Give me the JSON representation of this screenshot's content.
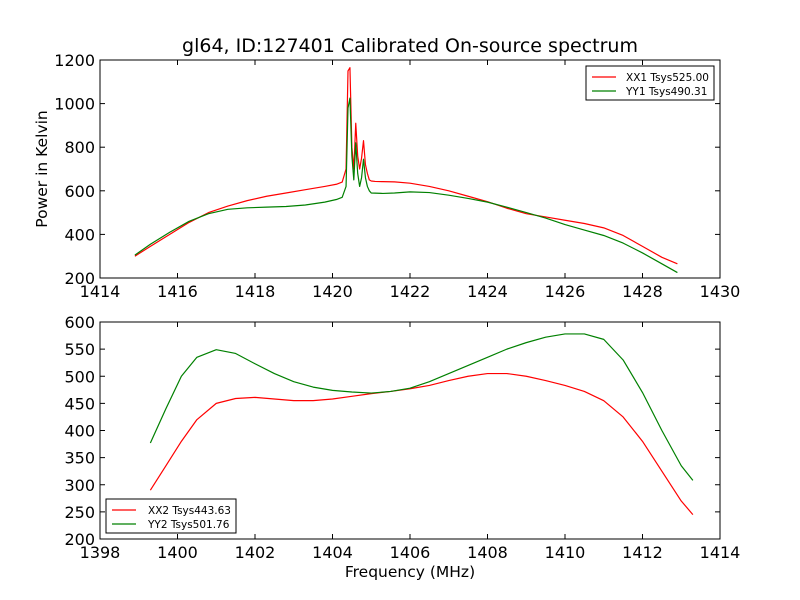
{
  "chart_data": [
    {
      "type": "line",
      "title": "gl64, ID:127401 Calibrated On-source spectrum",
      "xlabel": "",
      "ylabel": "Power in Kelvin",
      "xlim": [
        1414,
        1430
      ],
      "ylim": [
        200,
        1200
      ],
      "xticks": [
        1414,
        1416,
        1418,
        1420,
        1422,
        1424,
        1426,
        1428,
        1430
      ],
      "yticks": [
        200,
        400,
        600,
        800,
        1000,
        1200
      ],
      "grid": false,
      "legend": "top-right",
      "series": [
        {
          "name": "XX1 Tsys525.00",
          "color": "#ff0000",
          "x": [
            1414.9,
            1415.3,
            1415.8,
            1416.3,
            1416.8,
            1417.3,
            1417.8,
            1418.3,
            1418.8,
            1419.3,
            1419.8,
            1420.1,
            1420.25,
            1420.35,
            1420.4,
            1420.45,
            1420.5,
            1420.55,
            1420.6,
            1420.65,
            1420.7,
            1420.75,
            1420.8,
            1420.85,
            1420.9,
            1420.95,
            1421.0,
            1421.1,
            1421.3,
            1421.6,
            1422.0,
            1422.5,
            1423.0,
            1423.5,
            1424.0,
            1424.5,
            1425.0,
            1425.5,
            1426.0,
            1426.5,
            1427.0,
            1427.5,
            1428.0,
            1428.5,
            1428.9
          ],
          "y": [
            300,
            345,
            400,
            455,
            500,
            530,
            555,
            575,
            590,
            605,
            620,
            630,
            640,
            700,
            1150,
            1165,
            800,
            700,
            910,
            760,
            700,
            750,
            830,
            720,
            680,
            650,
            645,
            643,
            642,
            641,
            635,
            620,
            600,
            575,
            550,
            520,
            495,
            480,
            465,
            450,
            430,
            395,
            345,
            295,
            265
          ]
        },
        {
          "name": "YY1 Tsys490.31",
          "color": "#008000",
          "x": [
            1414.9,
            1415.3,
            1415.8,
            1416.3,
            1416.8,
            1417.3,
            1417.8,
            1418.3,
            1418.8,
            1419.3,
            1419.8,
            1420.1,
            1420.25,
            1420.35,
            1420.4,
            1420.45,
            1420.5,
            1420.55,
            1420.6,
            1420.65,
            1420.7,
            1420.75,
            1420.8,
            1420.85,
            1420.9,
            1420.95,
            1421.0,
            1421.3,
            1421.6,
            1422.0,
            1422.5,
            1423.0,
            1423.5,
            1424.0,
            1424.5,
            1425.0,
            1425.5,
            1426.0,
            1426.5,
            1427.0,
            1427.5,
            1428.0,
            1428.5,
            1428.9
          ],
          "y": [
            305,
            355,
            410,
            460,
            495,
            515,
            522,
            525,
            528,
            535,
            548,
            560,
            570,
            620,
            980,
            1025,
            760,
            650,
            820,
            680,
            620,
            660,
            745,
            660,
            620,
            600,
            590,
            588,
            590,
            595,
            592,
            580,
            565,
            548,
            525,
            500,
            475,
            445,
            420,
            395,
            360,
            315,
            265,
            225
          ]
        }
      ]
    },
    {
      "type": "line",
      "title": "",
      "xlabel": "Frequency (MHz)",
      "ylabel": "",
      "xlim": [
        1398,
        1414
      ],
      "ylim": [
        200,
        600
      ],
      "xticks": [
        1398,
        1400,
        1402,
        1404,
        1406,
        1408,
        1410,
        1412,
        1414
      ],
      "yticks": [
        200,
        250,
        300,
        350,
        400,
        450,
        500,
        550,
        600
      ],
      "grid": false,
      "legend": "bottom-left",
      "series": [
        {
          "name": "XX2 Tsys443.63",
          "color": "#ff0000",
          "x": [
            1399.3,
            1399.7,
            1400.1,
            1400.5,
            1401.0,
            1401.5,
            1402.0,
            1402.5,
            1403.0,
            1403.5,
            1404.0,
            1404.5,
            1405.0,
            1405.5,
            1406.0,
            1406.5,
            1407.0,
            1407.5,
            1408.0,
            1408.5,
            1409.0,
            1409.5,
            1410.0,
            1410.5,
            1411.0,
            1411.5,
            1412.0,
            1412.5,
            1413.0,
            1413.3
          ],
          "y": [
            290,
            335,
            380,
            420,
            450,
            459,
            461,
            458,
            455,
            455,
            458,
            463,
            468,
            472,
            477,
            483,
            492,
            500,
            505,
            505,
            500,
            492,
            483,
            472,
            455,
            425,
            380,
            325,
            270,
            245
          ]
        },
        {
          "name": "YY2 Tsys501.76",
          "color": "#008000",
          "x": [
            1399.3,
            1399.7,
            1400.1,
            1400.5,
            1401.0,
            1401.5,
            1402.0,
            1402.5,
            1403.0,
            1403.5,
            1404.0,
            1404.5,
            1405.0,
            1405.5,
            1406.0,
            1406.5,
            1407.0,
            1407.5,
            1408.0,
            1408.5,
            1409.0,
            1409.5,
            1410.0,
            1410.5,
            1411.0,
            1411.5,
            1412.0,
            1412.5,
            1413.0,
            1413.3
          ],
          "y": [
            377,
            440,
            500,
            535,
            549,
            542,
            523,
            505,
            490,
            480,
            474,
            471,
            469,
            472,
            478,
            490,
            505,
            520,
            535,
            550,
            562,
            572,
            578,
            578,
            568,
            530,
            470,
            400,
            335,
            308
          ]
        }
      ]
    }
  ]
}
